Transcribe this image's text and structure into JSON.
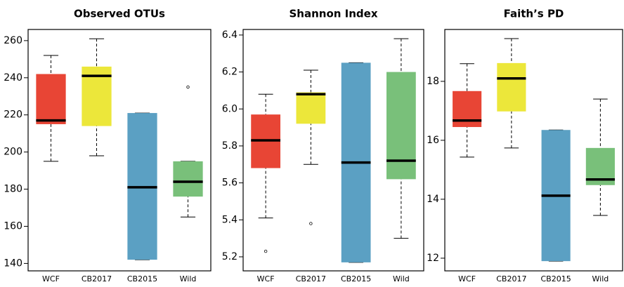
{
  "chart_data": [
    {
      "type": "box",
      "title": "Observed OTUs",
      "categories": [
        "WCF",
        "CB2017",
        "CB2015",
        "Wild"
      ],
      "colors": [
        "#e84535",
        "#ece73a",
        "#5ba0c3",
        "#79c07a"
      ],
      "boxes": [
        {
          "min": 195,
          "q1": 215,
          "median": 217,
          "q3": 242,
          "max": 252,
          "outliers": []
        },
        {
          "min": 198,
          "q1": 214,
          "median": 241,
          "q3": 246,
          "max": 261,
          "outliers": []
        },
        {
          "min": 142,
          "q1": 142,
          "median": 181,
          "q3": 221,
          "max": 221,
          "outliers": []
        },
        {
          "min": 165,
          "q1": 176,
          "median": 184,
          "q3": 195,
          "max": 195,
          "outliers": [
            235
          ]
        }
      ],
      "ylim": [
        136,
        266
      ],
      "yticks": [
        140,
        160,
        180,
        200,
        220,
        240,
        260
      ]
    },
    {
      "type": "box",
      "title": "Shannon Index",
      "categories": [
        "WCF",
        "CB2017",
        "CB2015",
        "Wild"
      ],
      "colors": [
        "#e84535",
        "#ece73a",
        "#5ba0c3",
        "#79c07a"
      ],
      "boxes": [
        {
          "min": 5.41,
          "q1": 5.68,
          "median": 5.83,
          "q3": 5.97,
          "max": 6.08,
          "outliers": [
            5.23
          ]
        },
        {
          "min": 5.7,
          "q1": 5.92,
          "median": 6.08,
          "q3": 6.09,
          "max": 6.21,
          "outliers": [
            5.38
          ]
        },
        {
          "min": 5.17,
          "q1": 5.17,
          "median": 5.71,
          "q3": 6.25,
          "max": 6.25,
          "outliers": []
        },
        {
          "min": 5.3,
          "q1": 5.62,
          "median": 5.72,
          "q3": 6.2,
          "max": 6.38,
          "outliers": []
        }
      ],
      "ylim": [
        5.124,
        6.43
      ],
      "yticks": [
        {
          "value": 5.2,
          "label": "5.2"
        },
        {
          "value": 5.4,
          "label": "5.4"
        },
        {
          "value": 5.6,
          "label": "5.6"
        },
        {
          "value": 5.8,
          "label": "5.8"
        },
        {
          "value": 6,
          "label": "6.0"
        },
        {
          "value": 6.2,
          "label": "6.2"
        },
        {
          "value": 6.4,
          "label": "6.4"
        }
      ]
    },
    {
      "type": "box",
      "title": "Faith’s PD",
      "categories": [
        "WCF",
        "CB2017",
        "CB2015",
        "Wild"
      ],
      "colors": [
        "#e84535",
        "#ece73a",
        "#5ba0c3",
        "#79c07a"
      ],
      "boxes": [
        {
          "min": 15.43,
          "q1": 16.45,
          "median": 16.67,
          "q3": 17.67,
          "max": 18.6,
          "outliers": []
        },
        {
          "min": 15.74,
          "q1": 16.98,
          "median": 18.1,
          "q3": 18.62,
          "max": 19.45,
          "outliers": []
        },
        {
          "min": 11.9,
          "q1": 11.9,
          "median": 14.12,
          "q3": 16.35,
          "max": 16.35,
          "outliers": []
        },
        {
          "min": 13.45,
          "q1": 14.48,
          "median": 14.67,
          "q3": 15.74,
          "max": 17.4,
          "outliers": []
        }
      ],
      "ylim": [
        11.57,
        19.76
      ],
      "yticks": [
        12,
        14,
        16,
        18
      ]
    }
  ]
}
